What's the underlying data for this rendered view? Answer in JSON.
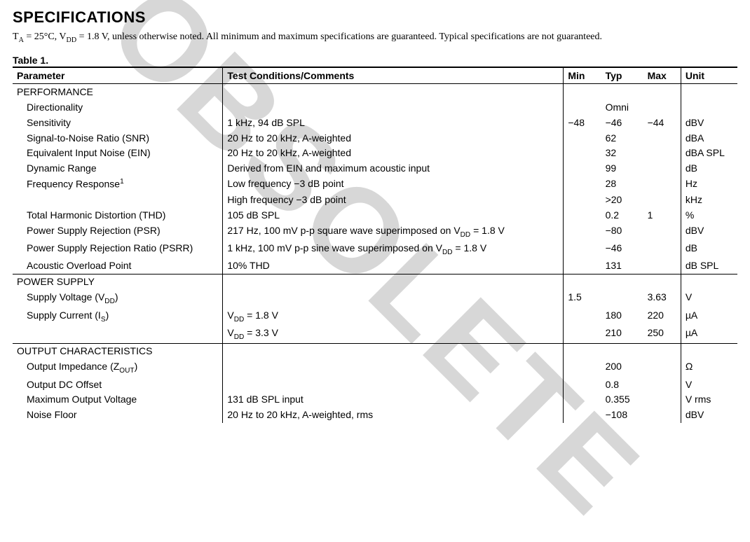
{
  "title": "SPECIFICATIONS",
  "intro": {
    "prefix": "T",
    "ta_sub": "A",
    "eq1": " = 25°C, V",
    "vdd_sub": "DD",
    "eq2": " = 1.8 V, unless otherwise noted. All minimum and maximum specifications are guaranteed. Typical specifications are not guaranteed."
  },
  "table_caption": "Table 1.",
  "watermark_text": "OBSOLETE",
  "columns": {
    "param": "Parameter",
    "cond": "Test Conditions/Comments",
    "min": "Min",
    "typ": "Typ",
    "max": "Max",
    "unit": "Unit"
  },
  "rows": [
    {
      "kind": "section",
      "param": "PERFORMANCE"
    },
    {
      "kind": "data",
      "param": "Directionality",
      "cond": "",
      "min": "",
      "typ": "Omni",
      "max": "",
      "unit": ""
    },
    {
      "kind": "data",
      "param": "Sensitivity",
      "cond": "1 kHz, 94 dB SPL",
      "min": "−48",
      "typ": "−46",
      "max": "−44",
      "unit": "dBV"
    },
    {
      "kind": "data",
      "param": "Signal-to-Noise Ratio (SNR)",
      "cond": "20 Hz to 20 kHz, A-weighted",
      "min": "",
      "typ": "62",
      "max": "",
      "unit": "dBA"
    },
    {
      "kind": "data",
      "param": "Equivalent Input Noise (EIN)",
      "cond": "20 Hz to 20 kHz, A-weighted",
      "min": "",
      "typ": "32",
      "max": "",
      "unit": "dBA SPL"
    },
    {
      "kind": "data",
      "param": "Dynamic Range",
      "cond": "Derived from EIN and maximum acoustic input",
      "min": "",
      "typ": "99",
      "max": "",
      "unit": "dB"
    },
    {
      "kind": "data",
      "param_html": "Frequency Response<span class=\"sup\">1</span>",
      "cond": "Low frequency −3 dB point",
      "min": "",
      "typ": "28",
      "max": "",
      "unit": "Hz"
    },
    {
      "kind": "data",
      "param": "",
      "cond": "High frequency −3 dB point",
      "min": "",
      "typ": ">20",
      "max": "",
      "unit": "kHz"
    },
    {
      "kind": "data",
      "param": "Total Harmonic Distortion (THD)",
      "cond": "105 dB SPL",
      "min": "",
      "typ": "0.2",
      "max": "1",
      "unit": "%"
    },
    {
      "kind": "data",
      "param": "Power Supply Rejection (PSR)",
      "cond_html": "217 Hz, 100 mV p-p square wave superimposed on V<span class=\"sub\">DD</span> = 1.8 V",
      "min": "",
      "typ": "−80",
      "max": "",
      "unit": "dBV"
    },
    {
      "kind": "data",
      "param": "Power Supply Rejection Ratio (PSRR)",
      "cond_html": "1 kHz, 100 mV p-p sine wave superimposed on V<span class=\"sub\">DD</span> = 1.8 V",
      "min": "",
      "typ": "−46",
      "max": "",
      "unit": "dB"
    },
    {
      "kind": "data",
      "param": "Acoustic Overload Point",
      "cond": "10% THD",
      "min": "",
      "typ": "131",
      "max": "",
      "unit": "dB SPL"
    },
    {
      "kind": "section",
      "sep": true,
      "param": "POWER SUPPLY"
    },
    {
      "kind": "data",
      "param_html": "Supply Voltage (V<span class=\"sub\">DD</span>)",
      "cond": "",
      "min": "1.5",
      "typ": "",
      "max": "3.63",
      "unit": "V"
    },
    {
      "kind": "data",
      "param_html": "Supply Current (I<span class=\"sub\">S</span>)",
      "cond_html": "V<span class=\"sub\">DD</span> = 1.8 V",
      "min": "",
      "typ": "180",
      "max": "220",
      "unit": "µA"
    },
    {
      "kind": "data",
      "param": "",
      "cond_html": "V<span class=\"sub\">DD</span> = 3.3 V",
      "min": "",
      "typ": "210",
      "max": "250",
      "unit": "µA"
    },
    {
      "kind": "section",
      "sep": true,
      "param": "OUTPUT CHARACTERISTICS"
    },
    {
      "kind": "data",
      "param_html": "Output Impedance (Z<span class=\"sub\">OUT</span>)",
      "cond": "",
      "min": "",
      "typ": "200",
      "max": "",
      "unit": "Ω"
    },
    {
      "kind": "data",
      "param": "Output DC Offset",
      "cond": "",
      "min": "",
      "typ": "0.8",
      "max": "",
      "unit": "V"
    },
    {
      "kind": "data",
      "param": "Maximum Output Voltage",
      "cond": "131 dB SPL input",
      "min": "",
      "typ": "0.355",
      "max": "",
      "unit": "V rms"
    },
    {
      "kind": "data",
      "param": "Noise Floor",
      "cond": "20 Hz to 20 kHz, A-weighted, rms",
      "min": "",
      "typ": "−108",
      "max": "",
      "unit": "dBV"
    }
  ]
}
